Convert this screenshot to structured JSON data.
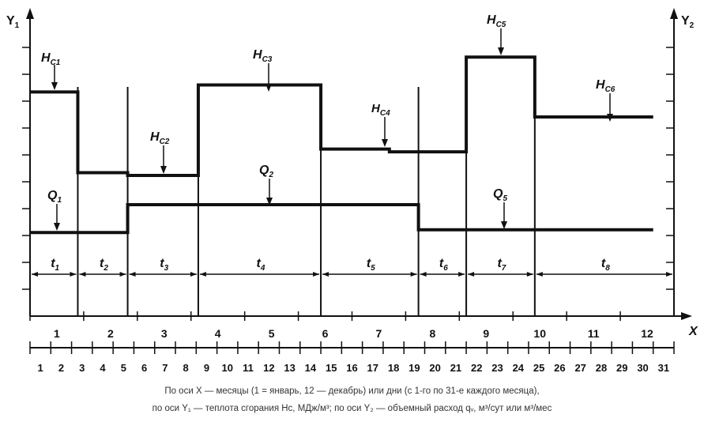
{
  "axes": {
    "y1_label": "Y",
    "y1_sub": "1",
    "y2_label": "Y",
    "y2_sub": "2",
    "x_label": "X"
  },
  "chart_data": {
    "type": "line",
    "title": "",
    "note": "Step plot: calorific value H and volumetric flow Q over months/days",
    "month_ticks": [
      1,
      2,
      3,
      4,
      5,
      6,
      7,
      8,
      9,
      10,
      11,
      12
    ],
    "day_ticks": [
      1,
      2,
      3,
      4,
      5,
      6,
      7,
      8,
      9,
      10,
      11,
      12,
      13,
      14,
      15,
      16,
      17,
      18,
      19,
      20,
      21,
      22,
      23,
      24,
      25,
      26,
      27,
      28,
      29,
      30,
      31
    ],
    "H_steps": [
      {
        "from": 1,
        "to": 3.3,
        "y": 8.05
      },
      {
        "from": 3.3,
        "to": 5.7,
        "y": 5.15
      },
      {
        "from": 5.7,
        "to": 9.1,
        "y": 5.05
      },
      {
        "from": 9.1,
        "to": 15.0,
        "y": 8.3
      },
      {
        "from": 15.0,
        "to": 18.3,
        "y": 6.0
      },
      {
        "from": 18.3,
        "to": 19.7,
        "y": 5.9
      },
      {
        "from": 19.7,
        "to": 22.0,
        "y": 5.9
      },
      {
        "from": 22.0,
        "to": 25.3,
        "y": 9.3
      },
      {
        "from": 25.3,
        "to": 31.0,
        "y": 7.15
      }
    ],
    "Q_steps": [
      {
        "from": 1,
        "to": 5.7,
        "y": 3.0
      },
      {
        "from": 5.7,
        "to": 19.7,
        "y": 4.0
      },
      {
        "from": 19.7,
        "to": 31.0,
        "y": 3.1
      }
    ],
    "y_range": [
      0,
      10.5
    ],
    "y_tick_count": 11
  },
  "labels": {
    "H1": "H",
    "H1_sub": "С1",
    "H2": "H",
    "H2_sub": "С2",
    "H3": "H",
    "H3_sub": "С3",
    "H4": "H",
    "H4_sub": "С4",
    "H5": "H",
    "H5_sub": "С5",
    "H6": "H",
    "H6_sub": "С6",
    "Q1": "Q",
    "Q1_sub": "1",
    "Q2": "Q",
    "Q2_sub": "2",
    "Q5": "Q",
    "Q5_sub": "5"
  },
  "periods": [
    {
      "label": "t",
      "sub": "1"
    },
    {
      "label": "t",
      "sub": "2"
    },
    {
      "label": "t",
      "sub": "3"
    },
    {
      "label": "t",
      "sub": "4"
    },
    {
      "label": "t",
      "sub": "5"
    },
    {
      "label": "t",
      "sub": "6"
    },
    {
      "label": "t",
      "sub": "7"
    },
    {
      "label": "t",
      "sub": "8"
    }
  ],
  "caption": {
    "line1": "По оси X — месяцы (1 = январь, 12 — декабрь) или дни (с 1-го по 31-е каждого месяца),",
    "line2": "по оси Y₁ — теплота сгорания Hс, МДж/м³; по оси Y₂ — объемный расход qᵥ, м³/сут или м³/мес"
  }
}
